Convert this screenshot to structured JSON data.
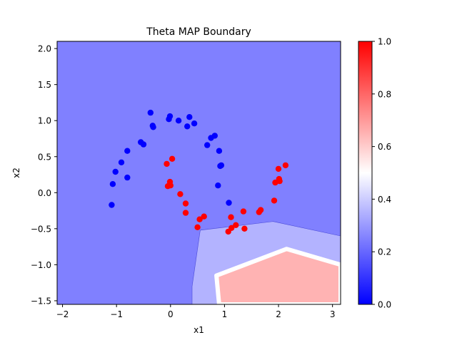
{
  "chart_data": {
    "type": "scatter",
    "title": "Theta MAP Boundary",
    "xlabel": "x1",
    "ylabel": "x2",
    "xlim": [
      -2.1,
      3.15
    ],
    "ylim": [
      -1.55,
      2.1
    ],
    "xticks": [
      -2,
      -1,
      0,
      1,
      2,
      3
    ],
    "yticks": [
      -1.5,
      -1.0,
      -0.5,
      0.0,
      0.5,
      1.0,
      1.5,
      2.0
    ],
    "xtick_labels": [
      "−2",
      "−1",
      "0",
      "1",
      "2",
      "3"
    ],
    "ytick_labels": [
      "−1.5",
      "−1.0",
      "−0.5",
      "0.0",
      "0.5",
      "1.0",
      "1.5",
      "2.0"
    ],
    "grid": false,
    "background_probability": 0.25,
    "colormap": {
      "name": "bwr",
      "low": "#0000ff",
      "mid": "#ffffff",
      "high": "#ff0000"
    },
    "colorbar": {
      "range": [
        0.0,
        1.0
      ],
      "ticks": [
        0.0,
        0.2,
        0.4,
        0.6,
        0.8,
        1.0
      ],
      "tick_labels": [
        "0.0",
        "0.2",
        "0.4",
        "0.6",
        "0.8",
        "1.0"
      ]
    },
    "boundary_region": {
      "outer_polygon": [
        [
          0.4,
          -1.3
        ],
        [
          0.55,
          -0.52
        ],
        [
          1.9,
          -0.4
        ],
        [
          3.15,
          -0.6
        ],
        [
          3.15,
          -1.55
        ],
        [
          0.4,
          -1.55
        ]
      ],
      "inner_polygon": [
        [
          0.85,
          -1.15
        ],
        [
          2.15,
          -0.78
        ],
        [
          3.15,
          -1.0
        ],
        [
          3.15,
          -1.55
        ],
        [
          0.9,
          -1.55
        ]
      ],
      "outer_probability": 0.35,
      "inner_probability": 0.65
    },
    "series": [
      {
        "class": 0,
        "color": "#0000ff",
        "points": [
          [
            -1.09,
            -0.17
          ],
          [
            -1.07,
            0.12
          ],
          [
            -1.02,
            0.29
          ],
          [
            -0.91,
            0.42
          ],
          [
            -0.8,
            0.58
          ],
          [
            -0.8,
            0.21
          ],
          [
            -0.55,
            0.7
          ],
          [
            -0.5,
            0.67
          ],
          [
            -0.37,
            1.11
          ],
          [
            -0.33,
            0.93
          ],
          [
            -0.32,
            0.91
          ],
          [
            -0.03,
            1.02
          ],
          [
            -0.01,
            1.06
          ],
          [
            0.15,
            1.0
          ],
          [
            0.31,
            0.92
          ],
          [
            0.35,
            1.05
          ],
          [
            0.44,
            0.96
          ],
          [
            0.68,
            0.66
          ],
          [
            0.75,
            0.76
          ],
          [
            0.82,
            0.79
          ],
          [
            0.88,
            0.1
          ],
          [
            0.9,
            0.58
          ],
          [
            0.92,
            0.37
          ],
          [
            0.94,
            0.38
          ],
          [
            1.08,
            -0.14
          ]
        ]
      },
      {
        "class": 1,
        "color": "#ff0000",
        "points": [
          [
            -0.07,
            0.4
          ],
          [
            -0.05,
            0.09
          ],
          [
            -0.01,
            0.15
          ],
          [
            0.0,
            0.1
          ],
          [
            0.03,
            0.47
          ],
          [
            0.18,
            -0.02
          ],
          [
            0.28,
            -0.15
          ],
          [
            0.28,
            -0.28
          ],
          [
            0.5,
            -0.48
          ],
          [
            0.54,
            -0.37
          ],
          [
            0.62,
            -0.33
          ],
          [
            1.07,
            -0.54
          ],
          [
            1.12,
            -0.34
          ],
          [
            1.13,
            -0.49
          ],
          [
            1.21,
            -0.45
          ],
          [
            1.35,
            -0.26
          ],
          [
            1.37,
            -0.5
          ],
          [
            1.64,
            -0.27
          ],
          [
            1.67,
            -0.24
          ],
          [
            1.92,
            -0.11
          ],
          [
            1.94,
            0.14
          ],
          [
            2.0,
            0.33
          ],
          [
            2.01,
            0.19
          ],
          [
            2.02,
            0.16
          ],
          [
            2.13,
            0.38
          ]
        ]
      }
    ]
  }
}
